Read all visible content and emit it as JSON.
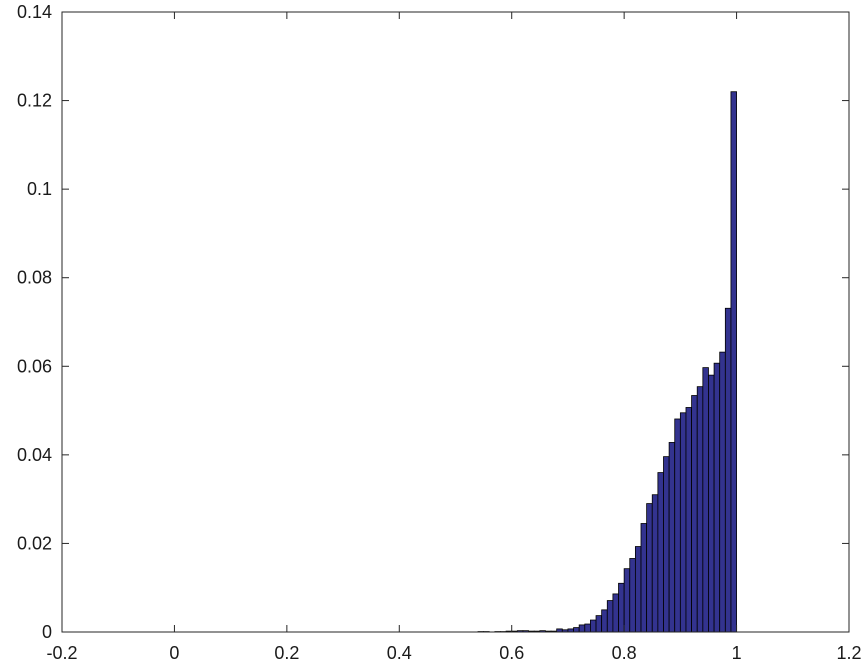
{
  "chart_data": {
    "type": "bar",
    "title": "",
    "xlabel": "",
    "ylabel": "",
    "xlim": [
      -0.2,
      1.2
    ],
    "ylim": [
      0,
      0.14
    ],
    "xticks": [
      "-0.2",
      "0",
      "0.2",
      "0.4",
      "0.6",
      "0.8",
      "1",
      "1.2"
    ],
    "yticks": [
      "0",
      "0.02",
      "0.04",
      "0.06",
      "0.08",
      "0.1",
      "0.12",
      "0.14"
    ],
    "grid": false,
    "bin_width": 0.01,
    "bin_starts": [
      0.54,
      0.55,
      0.56,
      0.57,
      0.58,
      0.59,
      0.6,
      0.61,
      0.62,
      0.63,
      0.64,
      0.65,
      0.66,
      0.67,
      0.68,
      0.69,
      0.7,
      0.71,
      0.72,
      0.73,
      0.74,
      0.75,
      0.76,
      0.77,
      0.78,
      0.79,
      0.8,
      0.81,
      0.82,
      0.83,
      0.84,
      0.85,
      0.86,
      0.87,
      0.88,
      0.89,
      0.9,
      0.91,
      0.92,
      0.93,
      0.94,
      0.95,
      0.96,
      0.97,
      0.98,
      0.99
    ],
    "values": [
      0.0001,
      0.0001,
      0.0,
      0.0001,
      0.0001,
      0.0002,
      0.0002,
      0.0003,
      0.0003,
      0.0002,
      0.0002,
      0.0003,
      0.0002,
      0.0002,
      0.0007,
      0.0005,
      0.0007,
      0.001,
      0.0016,
      0.0018,
      0.0027,
      0.0037,
      0.005,
      0.0071,
      0.0086,
      0.011,
      0.0143,
      0.0166,
      0.0193,
      0.0245,
      0.029,
      0.031,
      0.036,
      0.0396,
      0.0428,
      0.0481,
      0.0495,
      0.0507,
      0.0534,
      0.0554,
      0.0597,
      0.058,
      0.0607,
      0.0632,
      0.0731,
      0.122
    ],
    "colors": {
      "bar_fill": "#33338f",
      "bar_edge": "#000000"
    }
  }
}
